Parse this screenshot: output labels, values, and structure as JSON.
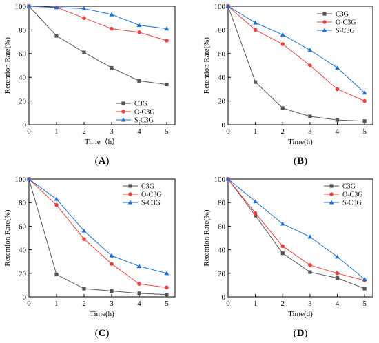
{
  "chart_data": [
    {
      "type": "line",
      "panel_label": "A",
      "xlabel": "Time（h）",
      "ylabel": "Retention Rate(%)",
      "x": [
        0,
        1,
        2,
        3,
        4,
        5
      ],
      "xlim": [
        0,
        5.3
      ],
      "ylim": [
        0,
        100
      ],
      "xticks": [
        0,
        1,
        2,
        3,
        4,
        5
      ],
      "yticks": [
        0,
        20,
        40,
        60,
        80,
        100
      ],
      "grid": false,
      "legend": "bottom-right",
      "series": [
        {
          "name": "C3G",
          "color": "#555555",
          "marker": "square",
          "values": [
            100,
            75,
            61,
            48,
            37,
            34
          ]
        },
        {
          "name": "O-C3G",
          "color": "#e8413f",
          "marker": "circle",
          "values": [
            100,
            99,
            90,
            81,
            78,
            71
          ]
        },
        {
          "name": "S-C3G",
          "color": "#1f6fd1",
          "marker": "triangle",
          "values": [
            100,
            99,
            98,
            93,
            84,
            81
          ]
        }
      ]
    },
    {
      "type": "line",
      "panel_label": "B",
      "xlabel": "Time(h)",
      "ylabel": "Retention Rate(%)",
      "x": [
        0,
        1,
        2,
        3,
        4,
        5
      ],
      "xlim": [
        0,
        5.3
      ],
      "ylim": [
        0,
        100
      ],
      "xticks": [
        0,
        1,
        2,
        3,
        4,
        5
      ],
      "yticks": [
        0,
        20,
        40,
        60,
        80,
        100
      ],
      "grid": false,
      "legend": "top-right",
      "series": [
        {
          "name": "C3G",
          "color": "#555555",
          "marker": "square",
          "values": [
            100,
            36,
            14,
            7,
            4,
            3
          ]
        },
        {
          "name": "O-C3G",
          "color": "#e8413f",
          "marker": "circle",
          "values": [
            100,
            80,
            68,
            50,
            30,
            20
          ]
        },
        {
          "name": "S-C3G",
          "color": "#1f6fd1",
          "marker": "triangle",
          "values": [
            100,
            86,
            76,
            63,
            48,
            27
          ]
        }
      ]
    },
    {
      "type": "line",
      "panel_label": "C",
      "xlabel": "Time(h)",
      "ylabel": "Retention Rate(%)",
      "x": [
        0,
        1,
        2,
        3,
        4,
        5
      ],
      "xlim": [
        0,
        5.3
      ],
      "ylim": [
        0,
        100
      ],
      "xticks": [
        0,
        1,
        2,
        3,
        4,
        5
      ],
      "yticks": [
        0,
        20,
        40,
        60,
        80,
        100
      ],
      "grid": false,
      "legend": "top-right",
      "series": [
        {
          "name": "C3G",
          "color": "#555555",
          "marker": "square",
          "values": [
            100,
            19,
            7,
            5,
            3,
            2
          ]
        },
        {
          "name": "O-C3G",
          "color": "#e8413f",
          "marker": "circle",
          "values": [
            100,
            78,
            49,
            28,
            11,
            8
          ]
        },
        {
          "name": "S-C3G",
          "color": "#1f6fd1",
          "marker": "triangle",
          "values": [
            100,
            83,
            56,
            35,
            26,
            20
          ]
        }
      ]
    },
    {
      "type": "line",
      "panel_label": "D",
      "xlabel": "Time(d)",
      "ylabel": "Retention Rate(%)",
      "x": [
        0,
        1,
        2,
        3,
        4,
        5
      ],
      "xlim": [
        0,
        5.3
      ],
      "ylim": [
        0,
        100
      ],
      "xticks": [
        0,
        1,
        2,
        3,
        4,
        5
      ],
      "yticks": [
        0,
        20,
        40,
        60,
        80,
        100
      ],
      "grid": false,
      "legend": "top-right",
      "series": [
        {
          "name": "C3G",
          "color": "#555555",
          "marker": "square",
          "values": [
            100,
            69,
            37,
            21,
            16,
            7
          ]
        },
        {
          "name": "O-C3G",
          "color": "#e8413f",
          "marker": "circle",
          "values": [
            100,
            71,
            43,
            27,
            20,
            14
          ]
        },
        {
          "name": "S-C3G",
          "color": "#1f6fd1",
          "marker": "triangle",
          "values": [
            100,
            81,
            62,
            51,
            34,
            15
          ]
        }
      ]
    }
  ]
}
